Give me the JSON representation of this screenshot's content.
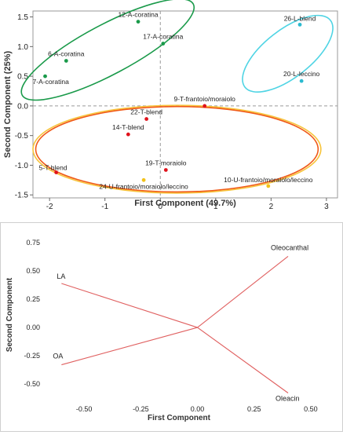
{
  "chart_data": [
    {
      "type": "scatter",
      "title": "",
      "xlabel": "First Component (49.7%)",
      "ylabel": "Second Component (25%)",
      "xlim": [
        -2.3,
        3.2
      ],
      "ylim": [
        -1.55,
        1.6
      ],
      "xticks": [
        -2,
        -1,
        0,
        1,
        2,
        3
      ],
      "yticks": [
        1.5,
        1.0,
        0.5,
        0.0,
        -0.5,
        -1.0,
        -1.5
      ],
      "ytick_labels": [
        "1.5",
        "1.0",
        "0.5",
        "0.0",
        "-0.5",
        "-1.0",
        "-1.5"
      ],
      "grid": false,
      "reference_lines": {
        "x": 0,
        "y": 0,
        "style": "dashed"
      },
      "points": [
        {
          "label": "12-A-coratina",
          "x": -0.4,
          "y": 1.42,
          "color": "#1a9a4a"
        },
        {
          "label": "17-A-coratina",
          "x": 0.05,
          "y": 1.05,
          "color": "#1a9a4a"
        },
        {
          "label": "6-A-coratina",
          "x": -1.7,
          "y": 0.76,
          "color": "#1a9a4a"
        },
        {
          "label": "7-A-coratina",
          "x": -2.08,
          "y": 0.5,
          "color": "#1a9a4a"
        },
        {
          "label": "26-L-blend",
          "x": 2.52,
          "y": 1.37,
          "color": "#2bbad0"
        },
        {
          "label": "20-L-leccino",
          "x": 2.55,
          "y": 0.42,
          "color": "#2bbad0"
        },
        {
          "label": "9-T-frantoio/moraiolo",
          "x": 0.8,
          "y": 0.0,
          "color": "#e0121b"
        },
        {
          "label": "22-T-blend",
          "x": -0.25,
          "y": -0.22,
          "color": "#e0121b"
        },
        {
          "label": "14-T-blend",
          "x": -0.58,
          "y": -0.48,
          "color": "#e0121b"
        },
        {
          "label": "5-T-blend",
          "x": -1.88,
          "y": -1.12,
          "color": "#e0121b"
        },
        {
          "label": "19-T-moraiolo",
          "x": 0.1,
          "y": -1.08,
          "color": "#e0121b"
        },
        {
          "label": "24-U-frantoio/moraiolo/leccino",
          "x": -0.3,
          "y": -1.25,
          "color": "#f2c21a"
        },
        {
          "label": "10-U-frantoio/moraiolo/leccino",
          "x": 1.95,
          "y": -1.35,
          "color": "#f2c21a"
        }
      ],
      "ellipses": [
        {
          "group": "A",
          "color": "#1a9a4a",
          "cx": -0.95,
          "cy": 0.95,
          "rx": 1.75,
          "ry": 0.42,
          "angle_deg": -28
        },
        {
          "group": "L",
          "color": "#4fd4e4",
          "cx": 2.3,
          "cy": 0.88,
          "rx": 0.98,
          "ry": 0.4,
          "angle_deg": -38
        },
        {
          "group": "U",
          "color": "#f7c43a",
          "cx": 0.3,
          "cy": -0.73,
          "rx": 2.6,
          "ry": 0.74,
          "angle_deg": 0
        },
        {
          "group": "T",
          "color": "#f05a18",
          "cx": 0.3,
          "cy": -0.73,
          "rx": 2.55,
          "ry": 0.72,
          "angle_deg": 0
        }
      ]
    },
    {
      "type": "line",
      "title": "",
      "xlabel": "First Component",
      "ylabel": "Second Component",
      "xlim": [
        -0.66,
        0.58
      ],
      "ylim": [
        -0.66,
        0.8
      ],
      "xticks": [
        -0.5,
        -0.25,
        0.0,
        0.25,
        0.5
      ],
      "xtick_labels": [
        "-0.50",
        "-0.25",
        "0.00",
        "0.25",
        "0.50"
      ],
      "yticks": [
        0.75,
        0.5,
        0.25,
        0.0,
        -0.25,
        -0.5
      ],
      "ytick_labels": [
        "0.75",
        "0.50",
        "0.25",
        "0.00",
        "-0.25",
        "-0.50"
      ],
      "color": "#e06060",
      "vectors": [
        {
          "label": "LA",
          "x": -0.6,
          "y": 0.39
        },
        {
          "label": "OA",
          "x": -0.6,
          "y": -0.33
        },
        {
          "label": "Oleocanthal",
          "x": 0.4,
          "y": 0.63
        },
        {
          "label": "Oleacin",
          "x": 0.4,
          "y": -0.58
        }
      ]
    }
  ]
}
